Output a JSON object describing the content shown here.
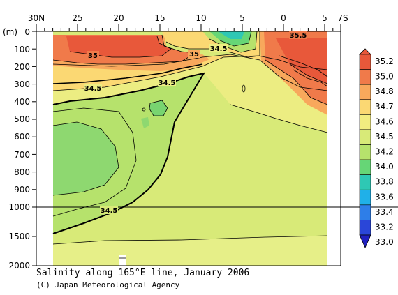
{
  "chart_data": {
    "type": "contour",
    "title": "Salinity along 165°E line, January 2006",
    "credit": "(C) Japan Meteorological Agency",
    "x_axis": {
      "ticks": [
        "30N",
        "25",
        "20",
        "15",
        "10",
        "5",
        "0",
        "5",
        "7S"
      ],
      "tick_values": [
        30,
        25,
        20,
        15,
        10,
        5,
        0,
        -5,
        -7
      ],
      "range": [
        30,
        -7
      ]
    },
    "y_axis": {
      "unit_label": "(m)",
      "ticks": [
        "0",
        "100",
        "200",
        "300",
        "400",
        "500",
        "600",
        "700",
        "800",
        "900",
        "1000",
        "1500",
        "2000"
      ],
      "tick_values": [
        0,
        100,
        200,
        300,
        400,
        500,
        600,
        700,
        800,
        900,
        1000,
        1500,
        2000
      ],
      "range": [
        0,
        2000
      ],
      "scale_break": 1000
    },
    "colorbar": {
      "levels": [
        "35.2",
        "35.0",
        "34.8",
        "34.7",
        "34.6",
        "34.5",
        "34.2",
        "34.0",
        "33.8",
        "33.6",
        "33.4",
        "33.2",
        "33.0"
      ],
      "colors": [
        "#e8583a",
        "#f07a4a",
        "#f8a85c",
        "#fbd873",
        "#f2ec80",
        "#d8ea78",
        "#b6e26c",
        "#66d676",
        "#2ec8b4",
        "#20b0e8",
        "#2e7ee8",
        "#2a46d8",
        "#2020c0"
      ]
    },
    "contour_labels": [
      {
        "text": "35.5",
        "lat": 0.5,
        "depth": 30
      },
      {
        "text": "34.5",
        "lat": 8.5,
        "depth": 70
      },
      {
        "text": "35",
        "lat": 24.5,
        "depth": 100
      },
      {
        "text": "35",
        "lat": 11.5,
        "depth": 90
      },
      {
        "text": "34.5",
        "lat": 25,
        "depth": 290
      },
      {
        "text": "34.5",
        "lat": 14,
        "depth": 260
      },
      {
        "text": "34.5",
        "lat": 21.5,
        "depth": 1020
      }
    ],
    "regions": [
      {
        "name": "high-salinity-north",
        "value": "35.0+",
        "lat_range": [
          30,
          11
        ],
        "depth_range": [
          0,
          150
        ]
      },
      {
        "name": "high-salinity-south",
        "value": "35.0+",
        "lat_range": [
          3.5,
          -7
        ],
        "depth_range": [
          0,
          300
        ]
      },
      {
        "name": "low-salinity-equatorial-surface",
        "value": "34.0",
        "lat_range": [
          11,
          5
        ],
        "depth_range": [
          0,
          60
        ]
      },
      {
        "name": "intermediate-water",
        "value": "34.2",
        "lat_range": [
          30,
          17
        ],
        "depth_range": [
          300,
          1000
        ]
      },
      {
        "name": "deep-water",
        "value": "34.6",
        "lat_range": [
          30,
          -7
        ],
        "depth_range": [
          1000,
          2000
        ]
      }
    ]
  }
}
